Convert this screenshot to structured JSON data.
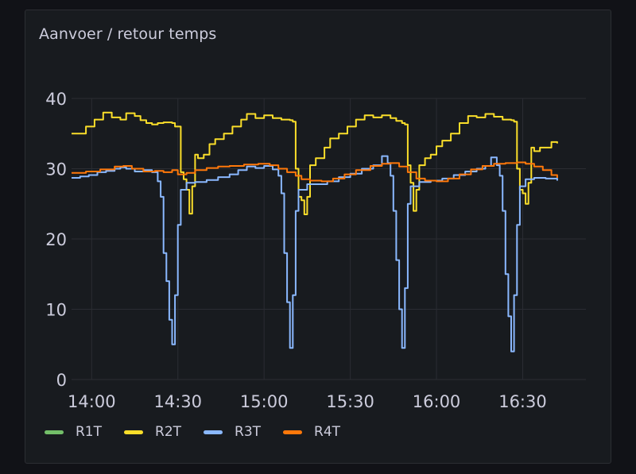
{
  "panel": {
    "title": "Aanvoer / retour temps"
  },
  "chart_data": {
    "type": "line",
    "title": "Aanvoer / retour temps",
    "xlabel": "",
    "ylabel": "",
    "x_range": [
      "13:53",
      "16:52"
    ],
    "x_ticks": [
      "14:00",
      "14:30",
      "15:00",
      "15:30",
      "16:00",
      "16:30"
    ],
    "y_ticks": [
      0,
      10,
      20,
      30,
      40
    ],
    "ylim": [
      0,
      40
    ],
    "grid": true,
    "legend_position": "bottom-left",
    "series": [
      {
        "name": "R1T",
        "color": "#73bf69",
        "points": []
      },
      {
        "name": "R2T",
        "color": "#fade2a",
        "points": [
          [
            "13:53",
            35.0
          ],
          [
            "13:55",
            35.0
          ],
          [
            "13:58",
            36.0
          ],
          [
            "14:01",
            37.0
          ],
          [
            "14:04",
            38.0
          ],
          [
            "14:07",
            37.3
          ],
          [
            "14:10",
            37.0
          ],
          [
            "14:12",
            37.9
          ],
          [
            "14:15",
            37.5
          ],
          [
            "14:17",
            36.9
          ],
          [
            "14:19",
            36.5
          ],
          [
            "14:21",
            36.3
          ],
          [
            "14:23",
            36.5
          ],
          [
            "14:25",
            36.6
          ],
          [
            "14:28",
            36.5
          ],
          [
            "14:29",
            36.0
          ],
          [
            "14:31",
            29.5
          ],
          [
            "14:32",
            28.5
          ],
          [
            "14:33",
            27.0
          ],
          [
            "14:34",
            23.6
          ],
          [
            "14:35",
            27.5
          ],
          [
            "14:36",
            32.0
          ],
          [
            "14:37",
            31.5
          ],
          [
            "14:38",
            31.5
          ],
          [
            "14:39",
            32.0
          ],
          [
            "14:41",
            33.5
          ],
          [
            "14:43",
            34.2
          ],
          [
            "14:46",
            35.0
          ],
          [
            "14:49",
            36.0
          ],
          [
            "14:52",
            37.0
          ],
          [
            "14:54",
            37.8
          ],
          [
            "14:57",
            37.2
          ],
          [
            "15:00",
            37.6
          ],
          [
            "15:03",
            37.2
          ],
          [
            "15:06",
            37.0
          ],
          [
            "15:09",
            36.9
          ],
          [
            "15:10",
            36.7
          ],
          [
            "15:11",
            30.0
          ],
          [
            "15:12",
            26.0
          ],
          [
            "15:13",
            25.5
          ],
          [
            "15:14",
            23.5
          ],
          [
            "15:15",
            26.0
          ],
          [
            "15:16",
            30.5
          ],
          [
            "15:18",
            31.5
          ],
          [
            "15:19",
            31.5
          ],
          [
            "15:21",
            33.0
          ],
          [
            "15:23",
            34.3
          ],
          [
            "15:26",
            35.0
          ],
          [
            "15:29",
            36.0
          ],
          [
            "15:32",
            37.0
          ],
          [
            "15:35",
            37.6
          ],
          [
            "15:38",
            37.3
          ],
          [
            "15:41",
            37.6
          ],
          [
            "15:44",
            37.2
          ],
          [
            "15:46",
            36.8
          ],
          [
            "15:48",
            36.5
          ],
          [
            "15:49",
            36.3
          ],
          [
            "15:50",
            30.5
          ],
          [
            "15:51",
            28.0
          ],
          [
            "15:52",
            24.0
          ],
          [
            "15:53",
            27.0
          ],
          [
            "15:54",
            30.5
          ],
          [
            "15:56",
            31.5
          ],
          [
            "15:58",
            32.0
          ],
          [
            "16:00",
            33.2
          ],
          [
            "16:02",
            34.0
          ],
          [
            "16:05",
            35.0
          ],
          [
            "16:08",
            36.5
          ],
          [
            "16:11",
            37.5
          ],
          [
            "16:14",
            37.3
          ],
          [
            "16:17",
            37.8
          ],
          [
            "16:20",
            37.4
          ],
          [
            "16:23",
            37.0
          ],
          [
            "16:26",
            36.9
          ],
          [
            "16:27",
            36.7
          ],
          [
            "16:28",
            30.0
          ],
          [
            "16:29",
            27.0
          ],
          [
            "16:30",
            26.5
          ],
          [
            "16:31",
            25.0
          ],
          [
            "16:32",
            28.0
          ],
          [
            "16:33",
            33.0
          ],
          [
            "16:34",
            32.5
          ],
          [
            "16:36",
            33.0
          ],
          [
            "16:38",
            33.0
          ],
          [
            "16:40",
            33.8
          ],
          [
            "16:42",
            33.6
          ]
        ]
      },
      {
        "name": "R3T",
        "color": "#8ab8ff",
        "points": [
          [
            "13:53",
            28.7
          ],
          [
            "13:56",
            28.9
          ],
          [
            "13:59",
            29.1
          ],
          [
            "14:02",
            29.5
          ],
          [
            "14:05",
            29.7
          ],
          [
            "14:08",
            30.0
          ],
          [
            "14:10",
            30.2
          ],
          [
            "14:12",
            30.0
          ],
          [
            "14:15",
            29.6
          ],
          [
            "14:18",
            29.8
          ],
          [
            "14:21",
            29.5
          ],
          [
            "14:23",
            28.2
          ],
          [
            "14:24",
            26.0
          ],
          [
            "14:25",
            18.0
          ],
          [
            "14:26",
            14.0
          ],
          [
            "14:27",
            8.5
          ],
          [
            "14:28",
            5.0
          ],
          [
            "14:29",
            12.0
          ],
          [
            "14:30",
            22.0
          ],
          [
            "14:31",
            27.0
          ],
          [
            "14:33",
            28.0
          ],
          [
            "14:36",
            28.1
          ],
          [
            "14:40",
            28.4
          ],
          [
            "14:44",
            28.8
          ],
          [
            "14:48",
            29.2
          ],
          [
            "14:51",
            29.8
          ],
          [
            "14:54",
            30.3
          ],
          [
            "14:57",
            30.1
          ],
          [
            "15:00",
            30.4
          ],
          [
            "15:03",
            29.9
          ],
          [
            "15:05",
            29.0
          ],
          [
            "15:06",
            26.5
          ],
          [
            "15:07",
            18.0
          ],
          [
            "15:08",
            11.0
          ],
          [
            "15:09",
            4.5
          ],
          [
            "15:10",
            12.0
          ],
          [
            "15:11",
            24.0
          ],
          [
            "15:12",
            27.0
          ],
          [
            "15:15",
            27.8
          ],
          [
            "15:18",
            27.8
          ],
          [
            "15:22",
            28.2
          ],
          [
            "15:26",
            28.8
          ],
          [
            "15:30",
            29.3
          ],
          [
            "15:34",
            30.0
          ],
          [
            "15:38",
            30.5
          ],
          [
            "15:41",
            31.8
          ],
          [
            "15:43",
            30.8
          ],
          [
            "15:44",
            29.0
          ],
          [
            "15:45",
            24.0
          ],
          [
            "15:46",
            17.0
          ],
          [
            "15:47",
            10.0
          ],
          [
            "15:48",
            4.5
          ],
          [
            "15:49",
            13.0
          ],
          [
            "15:50",
            25.0
          ],
          [
            "15:51",
            27.5
          ],
          [
            "15:54",
            28.1
          ],
          [
            "15:58",
            28.3
          ],
          [
            "16:02",
            28.6
          ],
          [
            "16:06",
            29.1
          ],
          [
            "16:10",
            29.6
          ],
          [
            "16:14",
            30.0
          ],
          [
            "16:17",
            30.4
          ],
          [
            "16:19",
            31.6
          ],
          [
            "16:21",
            30.5
          ],
          [
            "16:22",
            29.0
          ],
          [
            "16:23",
            24.0
          ],
          [
            "16:24",
            15.0
          ],
          [
            "16:25",
            9.0
          ],
          [
            "16:26",
            4.0
          ],
          [
            "16:27",
            12.0
          ],
          [
            "16:28",
            22.0
          ],
          [
            "16:29",
            27.5
          ],
          [
            "16:31",
            28.5
          ],
          [
            "16:34",
            28.7
          ],
          [
            "16:38",
            28.6
          ],
          [
            "16:42",
            28.3
          ]
        ]
      },
      {
        "name": "R4T",
        "color": "#ff780a",
        "points": [
          [
            "13:53",
            29.4
          ],
          [
            "13:58",
            29.6
          ],
          [
            "14:03",
            29.9
          ],
          [
            "14:08",
            30.3
          ],
          [
            "14:11",
            30.4
          ],
          [
            "14:14",
            30.0
          ],
          [
            "14:18",
            29.6
          ],
          [
            "14:22",
            29.7
          ],
          [
            "14:25",
            29.5
          ],
          [
            "14:28",
            29.8
          ],
          [
            "14:30",
            29.2
          ],
          [
            "14:33",
            29.4
          ],
          [
            "14:36",
            29.8
          ],
          [
            "14:40",
            30.1
          ],
          [
            "14:44",
            30.3
          ],
          [
            "14:48",
            30.4
          ],
          [
            "14:53",
            30.6
          ],
          [
            "14:58",
            30.7
          ],
          [
            "15:02",
            30.5
          ],
          [
            "15:05",
            30.0
          ],
          [
            "15:08",
            29.5
          ],
          [
            "15:11",
            29.0
          ],
          [
            "15:13",
            28.5
          ],
          [
            "15:16",
            28.3
          ],
          [
            "15:20",
            28.2
          ],
          [
            "15:24",
            28.6
          ],
          [
            "15:28",
            29.2
          ],
          [
            "15:32",
            29.8
          ],
          [
            "15:37",
            30.4
          ],
          [
            "15:41",
            30.7
          ],
          [
            "15:44",
            30.8
          ],
          [
            "15:47",
            30.3
          ],
          [
            "15:50",
            29.5
          ],
          [
            "15:53",
            28.6
          ],
          [
            "15:56",
            28.3
          ],
          [
            "16:00",
            28.2
          ],
          [
            "16:04",
            28.6
          ],
          [
            "16:08",
            29.2
          ],
          [
            "16:12",
            29.9
          ],
          [
            "16:16",
            30.4
          ],
          [
            "16:20",
            30.7
          ],
          [
            "16:24",
            30.8
          ],
          [
            "16:28",
            30.9
          ],
          [
            "16:31",
            30.7
          ],
          [
            "16:34",
            30.3
          ],
          [
            "16:37",
            29.8
          ],
          [
            "16:40",
            29.1
          ],
          [
            "16:42",
            28.7
          ]
        ]
      }
    ]
  }
}
